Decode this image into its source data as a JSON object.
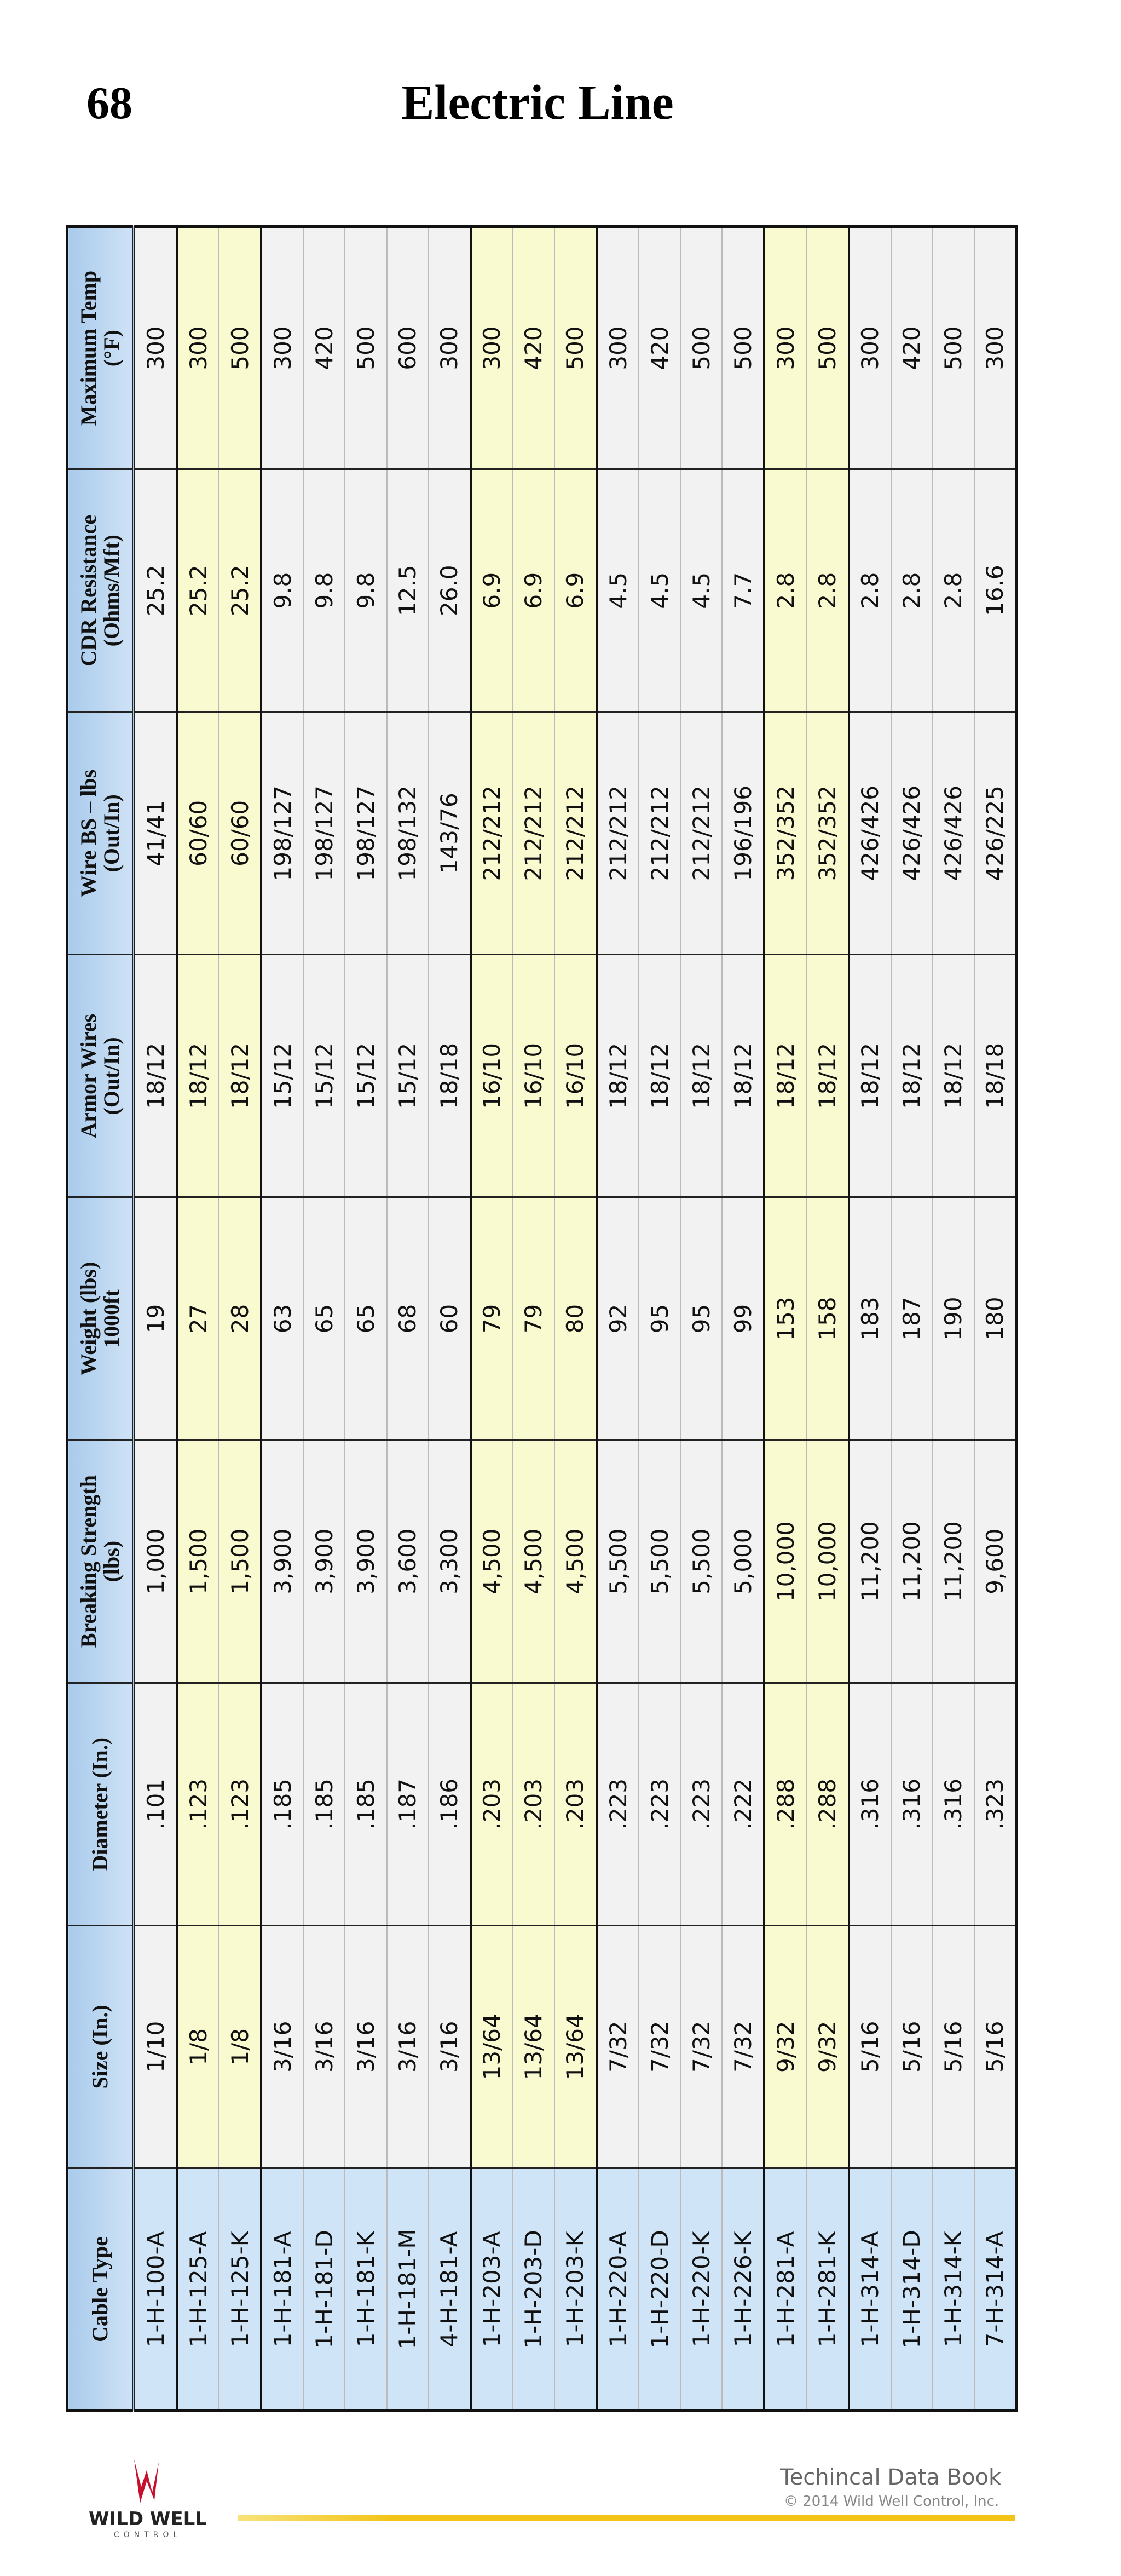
{
  "header": {
    "page_number": "68",
    "title": "Electric Line"
  },
  "table": {
    "columns": [
      [
        "Cable Type"
      ],
      [
        "Size (In.)"
      ],
      [
        "Diameter (In.)"
      ],
      [
        "Breaking Strength",
        "(lbs)"
      ],
      [
        "Weight (lbs)",
        "1000ft"
      ],
      [
        "Armor Wires",
        "(Out/In)"
      ],
      [
        "Wire BS – lbs",
        "(Out/In)"
      ],
      [
        "CDR Resistance",
        "(Ohms/Mft)"
      ],
      [
        "Maximum Temp",
        "(°F)"
      ]
    ],
    "rows": [
      [
        "1-H-100-A",
        "1/10",
        ".101",
        "1,000",
        "19",
        "18/12",
        "41/41",
        "25.2",
        "300"
      ],
      [
        "1-H-125-A",
        "1/8",
        ".123",
        "1,500",
        "27",
        "18/12",
        "60/60",
        "25.2",
        "300"
      ],
      [
        "1-H-125-K",
        "1/8",
        ".123",
        "1,500",
        "28",
        "18/12",
        "60/60",
        "25.2",
        "500"
      ],
      [
        "1-H-181-A",
        "3/16",
        ".185",
        "3,900",
        "63",
        "15/12",
        "198/127",
        "9.8",
        "300"
      ],
      [
        "1-H-181-D",
        "3/16",
        ".185",
        "3,900",
        "65",
        "15/12",
        "198/127",
        "9.8",
        "420"
      ],
      [
        "1-H-181-K",
        "3/16",
        ".185",
        "3,900",
        "65",
        "15/12",
        "198/127",
        "9.8",
        "500"
      ],
      [
        "1-H-181-M",
        "3/16",
        ".187",
        "3,600",
        "68",
        "15/12",
        "198/132",
        "12.5",
        "600"
      ],
      [
        "4-H-181-A",
        "3/16",
        ".186",
        "3,300",
        "60",
        "18/18",
        "143/76",
        "26.0",
        "300"
      ],
      [
        "1-H-203-A",
        "13/64",
        ".203",
        "4,500",
        "79",
        "16/10",
        "212/212",
        "6.9",
        "300"
      ],
      [
        "1-H-203-D",
        "13/64",
        ".203",
        "4,500",
        "79",
        "16/10",
        "212/212",
        "6.9",
        "420"
      ],
      [
        "1-H-203-K",
        "13/64",
        ".203",
        "4,500",
        "80",
        "16/10",
        "212/212",
        "6.9",
        "500"
      ],
      [
        "1-H-220-A",
        "7/32",
        ".223",
        "5,500",
        "92",
        "18/12",
        "212/212",
        "4.5",
        "300"
      ],
      [
        "1-H-220-D",
        "7/32",
        ".223",
        "5,500",
        "95",
        "18/12",
        "212/212",
        "4.5",
        "420"
      ],
      [
        "1-H-220-K",
        "7/32",
        ".223",
        "5,500",
        "95",
        "18/12",
        "212/212",
        "4.5",
        "500"
      ],
      [
        "1-H-226-K",
        "7/32",
        ".222",
        "5,000",
        "99",
        "18/12",
        "196/196",
        "7.7",
        "500"
      ],
      [
        "1-H-281-A",
        "9/32",
        ".288",
        "10,000",
        "153",
        "18/12",
        "352/352",
        "2.8",
        "300"
      ],
      [
        "1-H-281-K",
        "9/32",
        ".288",
        "10,000",
        "158",
        "18/12",
        "352/352",
        "2.8",
        "500"
      ],
      [
        "1-H-314-A",
        "5/16",
        ".316",
        "11,200",
        "183",
        "18/12",
        "426/426",
        "2.8",
        "300"
      ],
      [
        "1-H-314-D",
        "5/16",
        ".316",
        "11,200",
        "187",
        "18/12",
        "426/426",
        "2.8",
        "420"
      ],
      [
        "1-H-314-K",
        "5/16",
        ".316",
        "11,200",
        "190",
        "18/12",
        "426/426",
        "2.8",
        "500"
      ],
      [
        "7-H-314-A",
        "5/16",
        ".323",
        "9,600",
        "180",
        "18/18",
        "426/225",
        "16.6",
        "300"
      ]
    ]
  },
  "footer": {
    "logo_name": "WILD WELL",
    "logo_sub": "CONTROL",
    "book_title": "Techincal Data Book",
    "copyright": "© 2014 Wild Well Control, Inc."
  }
}
